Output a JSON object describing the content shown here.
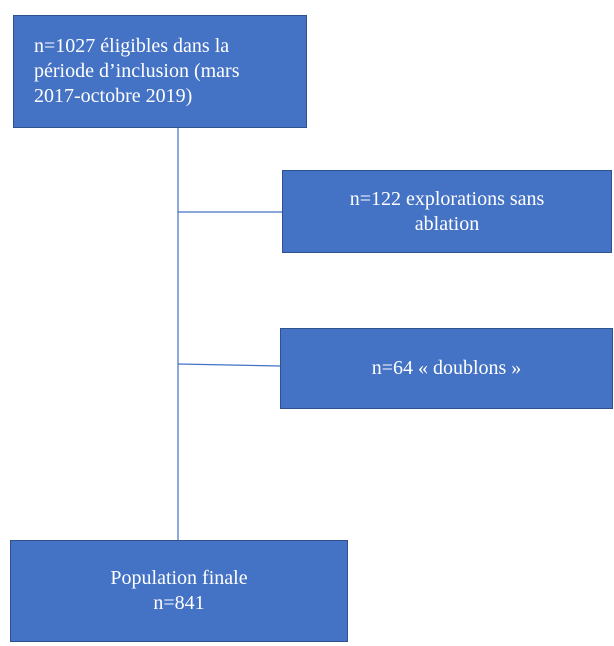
{
  "nodes": [
    {
      "lines": [
        "n=1027 éligibles dans la",
        "période d’inclusion (mars",
        "2017-octobre 2019)"
      ]
    },
    {
      "lines": [
        "n=122 explorations sans",
        "ablation"
      ]
    },
    {
      "lines": [
        "n=64 « doublons »"
      ]
    },
    {
      "lines": [
        "Population finale",
        "n=841"
      ]
    }
  ]
}
